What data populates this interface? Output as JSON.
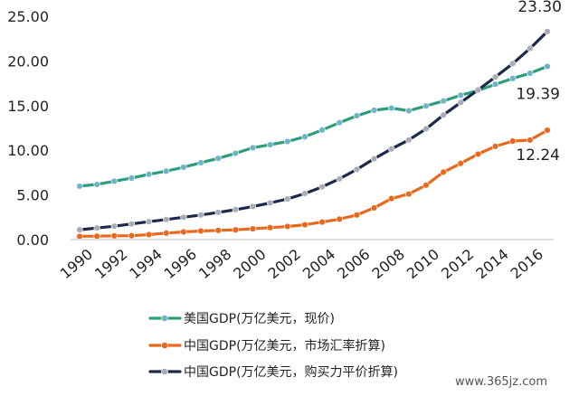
{
  "chart_data": {
    "type": "line",
    "x": [
      1990,
      1991,
      1992,
      1993,
      1994,
      1995,
      1996,
      1997,
      1998,
      1999,
      2000,
      2001,
      2002,
      2003,
      2004,
      2005,
      2006,
      2007,
      2008,
      2009,
      2010,
      2011,
      2012,
      2013,
      2014,
      2015,
      2016,
      2017
    ],
    "x_tick_labels": [
      "1990",
      "1992",
      "1994",
      "1996",
      "1998",
      "2000",
      "2002",
      "2004",
      "2006",
      "2008",
      "2010",
      "2012",
      "2014",
      "2016"
    ],
    "y_tick_labels": [
      "0.00",
      "5.00",
      "10.00",
      "15.00",
      "20.00",
      "25.00"
    ],
    "ylim": [
      0,
      25
    ],
    "grid": false,
    "legend_position": "bottom",
    "series": [
      {
        "name": "美国GDP(万亿美元，现价)",
        "color": "#2e9e7a",
        "marker_color": "#6fb3c9",
        "values": [
          5.98,
          6.17,
          6.54,
          6.88,
          7.31,
          7.66,
          8.1,
          8.61,
          9.09,
          9.66,
          10.28,
          10.62,
          10.98,
          11.51,
          12.27,
          13.09,
          13.86,
          14.48,
          14.72,
          14.42,
          14.96,
          15.52,
          16.16,
          16.69,
          17.39,
          18.04,
          18.62,
          19.39
        ],
        "end_label": "19.39"
      },
      {
        "name": "中国GDP(万亿美元，市场汇率折算)",
        "color": "#e8691e",
        "marker_color": "#e8691e",
        "values": [
          0.36,
          0.38,
          0.42,
          0.44,
          0.56,
          0.73,
          0.86,
          0.96,
          1.03,
          1.09,
          1.21,
          1.34,
          1.47,
          1.66,
          1.96,
          2.29,
          2.75,
          3.55,
          4.59,
          5.1,
          6.09,
          7.55,
          8.53,
          9.57,
          10.44,
          11.02,
          11.14,
          12.24
        ],
        "end_label": "12.24"
      },
      {
        "name": "中国GDP(万亿美元，购买力平价折算)",
        "color": "#1a2a4a",
        "marker_color": "#a9acb3",
        "values": [
          1.1,
          1.3,
          1.5,
          1.75,
          2.0,
          2.25,
          2.5,
          2.75,
          3.05,
          3.35,
          3.7,
          4.1,
          4.55,
          5.15,
          5.9,
          6.8,
          7.85,
          9.05,
          10.15,
          11.15,
          12.4,
          13.95,
          15.35,
          16.75,
          18.2,
          19.7,
          21.4,
          23.3
        ],
        "end_label": "23.30"
      }
    ]
  },
  "watermark": "www.365jz.com"
}
